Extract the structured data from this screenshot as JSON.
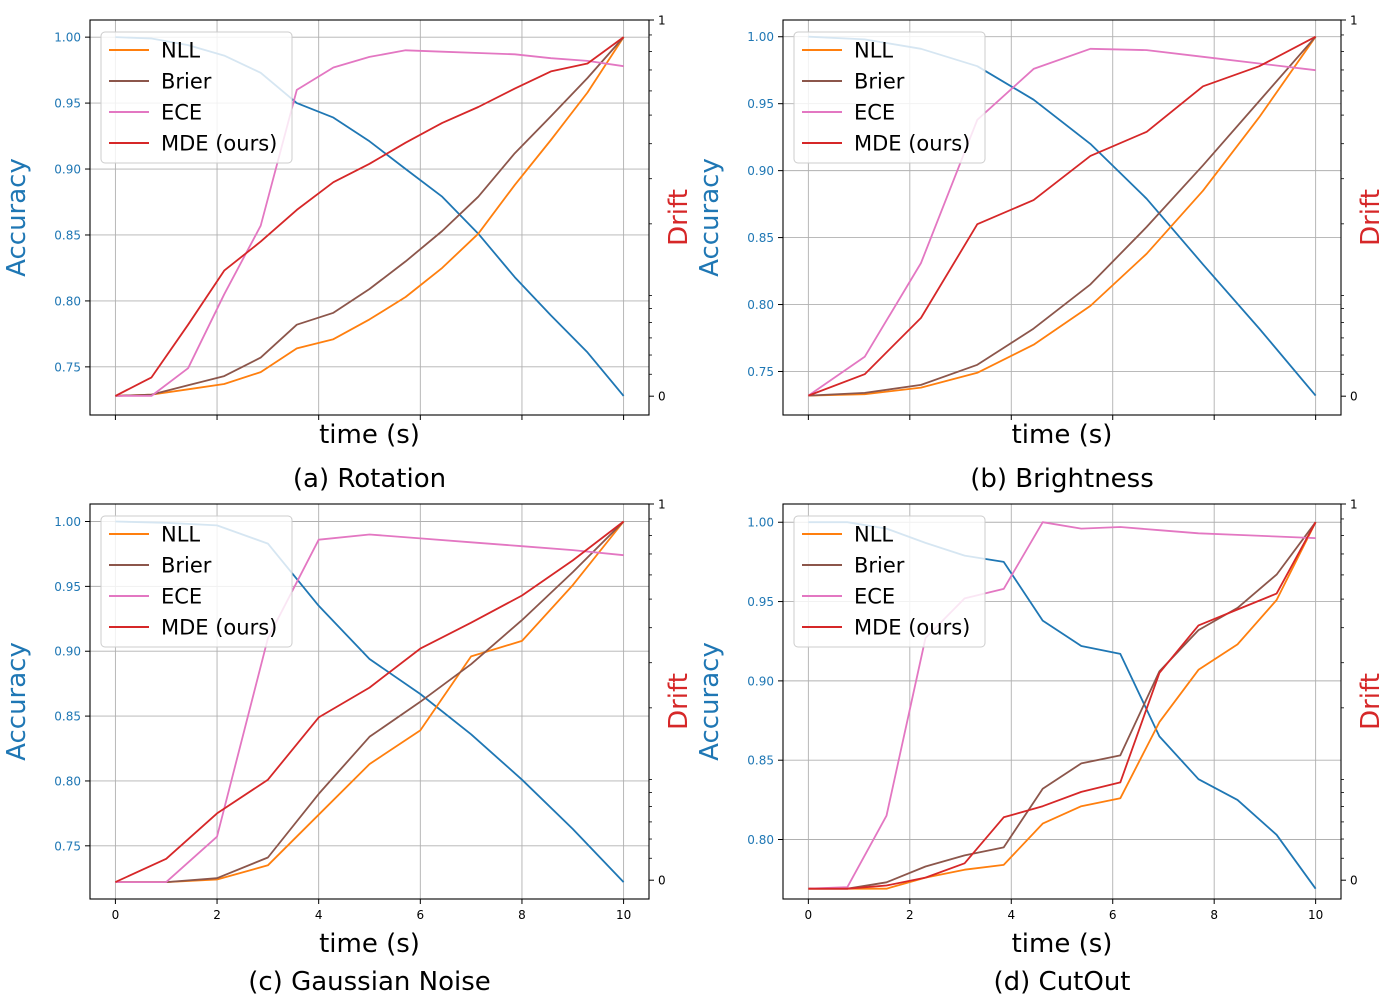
{
  "chart_data": [
    {
      "type": "line",
      "caption": "(a) Rotation",
      "xlabel": "time (s)",
      "ylabel_left": "Accuracy",
      "ylabel_right": "Drift",
      "xlim": [
        -0.5,
        10.5
      ],
      "ylim_left": [
        0.7135,
        1.013
      ],
      "ylim_right": [
        -0.05,
        1.0
      ],
      "xticks": [
        "0",
        "2",
        "4",
        "6",
        "8",
        "10"
      ],
      "xtick_labels_shown": false,
      "yticks_left": [
        "0.75",
        "0.80",
        "0.85",
        "0.90",
        "0.95",
        "1.00"
      ],
      "yticks_right": [
        "0",
        "1"
      ],
      "right_axis_scale": "log-like (symlog)",
      "grid": true,
      "legend": "upper-left",
      "colors": {
        "accuracy": "#1f77b4",
        "NLL": "#ff7f0e",
        "Brier": "#8c564b",
        "ECE": "#e377c2",
        "MDE (ours)": "#d62728",
        "right_label": "#d62728"
      },
      "x": [
        0,
        0.71,
        1.43,
        2.14,
        2.86,
        3.57,
        4.29,
        5.0,
        5.71,
        6.43,
        7.14,
        7.86,
        8.57,
        9.29,
        10
      ],
      "accuracy": [
        1.0,
        0.999,
        0.994,
        0.986,
        0.973,
        0.95,
        0.939,
        0.921,
        0.9,
        0.879,
        0.851,
        0.818,
        0.789,
        0.761,
        0.728
      ],
      "series": [
        {
          "name": "NLL",
          "values": [
            0.728,
            0.729,
            0.733,
            0.737,
            0.746,
            0.764,
            0.771,
            0.786,
            0.803,
            0.825,
            0.851,
            0.888,
            0.922,
            0.958,
            1.0
          ]
        },
        {
          "name": "Brier",
          "values": [
            0.728,
            0.729,
            0.736,
            0.743,
            0.757,
            0.782,
            0.791,
            0.809,
            0.83,
            0.853,
            0.879,
            0.912,
            0.94,
            0.969,
            1.0
          ]
        },
        {
          "name": "ECE",
          "values": [
            0.728,
            0.728,
            0.749,
            0.805,
            0.857,
            0.96,
            0.977,
            0.985,
            0.99,
            0.989,
            0.988,
            0.987,
            0.984,
            0.982,
            0.978
          ]
        },
        {
          "name": "MDE (ours)",
          "values": [
            0.728,
            0.742,
            0.782,
            0.823,
            0.845,
            0.869,
            0.89,
            0.904,
            0.92,
            0.935,
            0.947,
            0.961,
            0.974,
            0.98,
            1.0
          ]
        }
      ]
    },
    {
      "type": "line",
      "caption": "(b) Brightness",
      "xlabel": "time (s)",
      "ylabel_left": "Accuracy",
      "ylabel_right": "Drift",
      "xlim": [
        -0.5,
        10.5
      ],
      "ylim_left": [
        0.7175,
        1.0125
      ],
      "ylim_right": [
        -0.05,
        1.0
      ],
      "xticks": [
        "0",
        "2",
        "4",
        "6",
        "8",
        "10"
      ],
      "xtick_labels_shown": false,
      "yticks_left": [
        "0.75",
        "0.80",
        "0.85",
        "0.90",
        "0.95",
        "1.00"
      ],
      "yticks_right": [
        "0",
        "1"
      ],
      "right_axis_scale": "log-like (symlog)",
      "grid": true,
      "legend": "upper-left",
      "colors": {
        "accuracy": "#1f77b4",
        "NLL": "#ff7f0e",
        "Brier": "#8c564b",
        "ECE": "#e377c2",
        "MDE (ours)": "#d62728",
        "right_label": "#d62728"
      },
      "x": [
        0,
        1.11,
        2.22,
        3.33,
        4.44,
        5.56,
        6.67,
        7.78,
        8.89,
        10
      ],
      "accuracy": [
        1.0,
        0.998,
        0.991,
        0.978,
        0.953,
        0.92,
        0.879,
        0.83,
        0.782,
        0.732
      ],
      "series": [
        {
          "name": "NLL",
          "values": [
            0.732,
            0.733,
            0.738,
            0.749,
            0.77,
            0.799,
            0.838,
            0.885,
            0.94,
            1.0
          ]
        },
        {
          "name": "Brier",
          "values": [
            0.732,
            0.734,
            0.74,
            0.755,
            0.782,
            0.815,
            0.858,
            0.904,
            0.952,
            1.0
          ]
        },
        {
          "name": "ECE",
          "values": [
            0.732,
            0.761,
            0.831,
            0.938,
            0.976,
            0.991,
            0.99,
            0.985,
            0.98,
            0.975
          ]
        },
        {
          "name": "MDE (ours)",
          "values": [
            0.732,
            0.748,
            0.79,
            0.86,
            0.878,
            0.911,
            0.929,
            0.963,
            0.978,
            1.0
          ]
        }
      ]
    },
    {
      "type": "line",
      "caption": "(c) Gaussian Noise",
      "xlabel": "time (s)",
      "ylabel_left": "Accuracy",
      "ylabel_right": "Drift",
      "xlim": [
        -0.5,
        10.5
      ],
      "ylim_left": [
        0.709,
        1.0135
      ],
      "ylim_right": [
        -0.05,
        1.0
      ],
      "xticks": [
        "0",
        "2",
        "4",
        "6",
        "8",
        "10"
      ],
      "xtick_labels_shown": true,
      "yticks_left": [
        "0.75",
        "0.80",
        "0.85",
        "0.90",
        "0.95",
        "1.00"
      ],
      "yticks_right": [
        "0",
        "1"
      ],
      "right_axis_scale": "log-like (symlog)",
      "grid": true,
      "legend": "upper-left",
      "colors": {
        "accuracy": "#1f77b4",
        "NLL": "#ff7f0e",
        "Brier": "#8c564b",
        "ECE": "#e377c2",
        "MDE (ours)": "#d62728",
        "right_label": "#d62728"
      },
      "x": [
        0,
        1,
        2,
        3,
        4,
        5,
        6,
        7,
        8,
        9,
        10
      ],
      "accuracy": [
        1.0,
        0.999,
        0.997,
        0.983,
        0.935,
        0.894,
        0.867,
        0.836,
        0.801,
        0.763,
        0.722
      ],
      "series": [
        {
          "name": "NLL",
          "values": [
            0.722,
            0.722,
            0.724,
            0.735,
            0.774,
            0.813,
            0.839,
            0.896,
            0.908,
            0.951,
            1.0
          ]
        },
        {
          "name": "Brier",
          "values": [
            0.722,
            0.722,
            0.725,
            0.741,
            0.79,
            0.834,
            0.861,
            0.89,
            0.924,
            0.961,
            1.0
          ]
        },
        {
          "name": "ECE",
          "values": [
            0.722,
            0.722,
            0.757,
            0.91,
            0.986,
            0.99,
            0.987,
            0.984,
            0.981,
            0.978,
            0.974
          ]
        },
        {
          "name": "MDE (ours)",
          "values": [
            0.722,
            0.74,
            0.775,
            0.801,
            0.849,
            0.872,
            0.902,
            0.922,
            0.943,
            0.97,
            1.0
          ]
        }
      ]
    },
    {
      "type": "line",
      "caption": "(d) CutOut",
      "xlabel": "time (s)",
      "ylabel_left": "Accuracy",
      "ylabel_right": "Drift",
      "xlim": [
        -0.5,
        10.5
      ],
      "ylim_left": [
        0.7625,
        1.0115
      ],
      "ylim_right": [
        -0.05,
        1.0
      ],
      "xticks": [
        "0",
        "2",
        "4",
        "6",
        "8",
        "10"
      ],
      "xtick_labels_shown": true,
      "yticks_left": [
        "0.80",
        "0.85",
        "0.90",
        "0.95",
        "1.00"
      ],
      "yticks_right": [
        "0",
        "1"
      ],
      "right_axis_scale": "log-like (symlog)",
      "grid": true,
      "legend": "upper-left",
      "colors": {
        "accuracy": "#1f77b4",
        "NLL": "#ff7f0e",
        "Brier": "#8c564b",
        "ECE": "#e377c2",
        "MDE (ours)": "#d62728",
        "right_label": "#d62728"
      },
      "x": [
        0,
        0.77,
        1.54,
        2.31,
        3.08,
        3.85,
        4.62,
        5.38,
        6.15,
        6.92,
        7.69,
        8.46,
        9.23,
        10
      ],
      "accuracy": [
        1.0,
        1.0,
        0.996,
        0.987,
        0.979,
        0.975,
        0.938,
        0.922,
        0.917,
        0.865,
        0.838,
        0.825,
        0.803,
        0.769
      ],
      "series": [
        {
          "name": "NLL",
          "values": [
            0.769,
            0.769,
            0.769,
            0.776,
            0.781,
            0.784,
            0.81,
            0.821,
            0.826,
            0.874,
            0.907,
            0.923,
            0.951,
            1.0
          ]
        },
        {
          "name": "Brier",
          "values": [
            0.769,
            0.769,
            0.773,
            0.783,
            0.79,
            0.795,
            0.832,
            0.848,
            0.853,
            0.906,
            0.932,
            0.946,
            0.967,
            1.0
          ]
        },
        {
          "name": "ECE",
          "values": [
            0.769,
            0.77,
            0.815,
            0.927,
            0.952,
            0.958,
            1.0,
            0.996,
            0.997,
            0.995,
            0.993,
            0.992,
            0.991,
            0.99
          ]
        },
        {
          "name": "MDE (ours)",
          "values": [
            0.769,
            0.769,
            0.771,
            0.776,
            0.785,
            0.814,
            0.821,
            0.83,
            0.836,
            0.905,
            0.935,
            0.945,
            0.955,
            1.0
          ]
        }
      ]
    }
  ],
  "legend_order": [
    "NLL",
    "Brier",
    "ECE",
    "MDE (ours)"
  ]
}
